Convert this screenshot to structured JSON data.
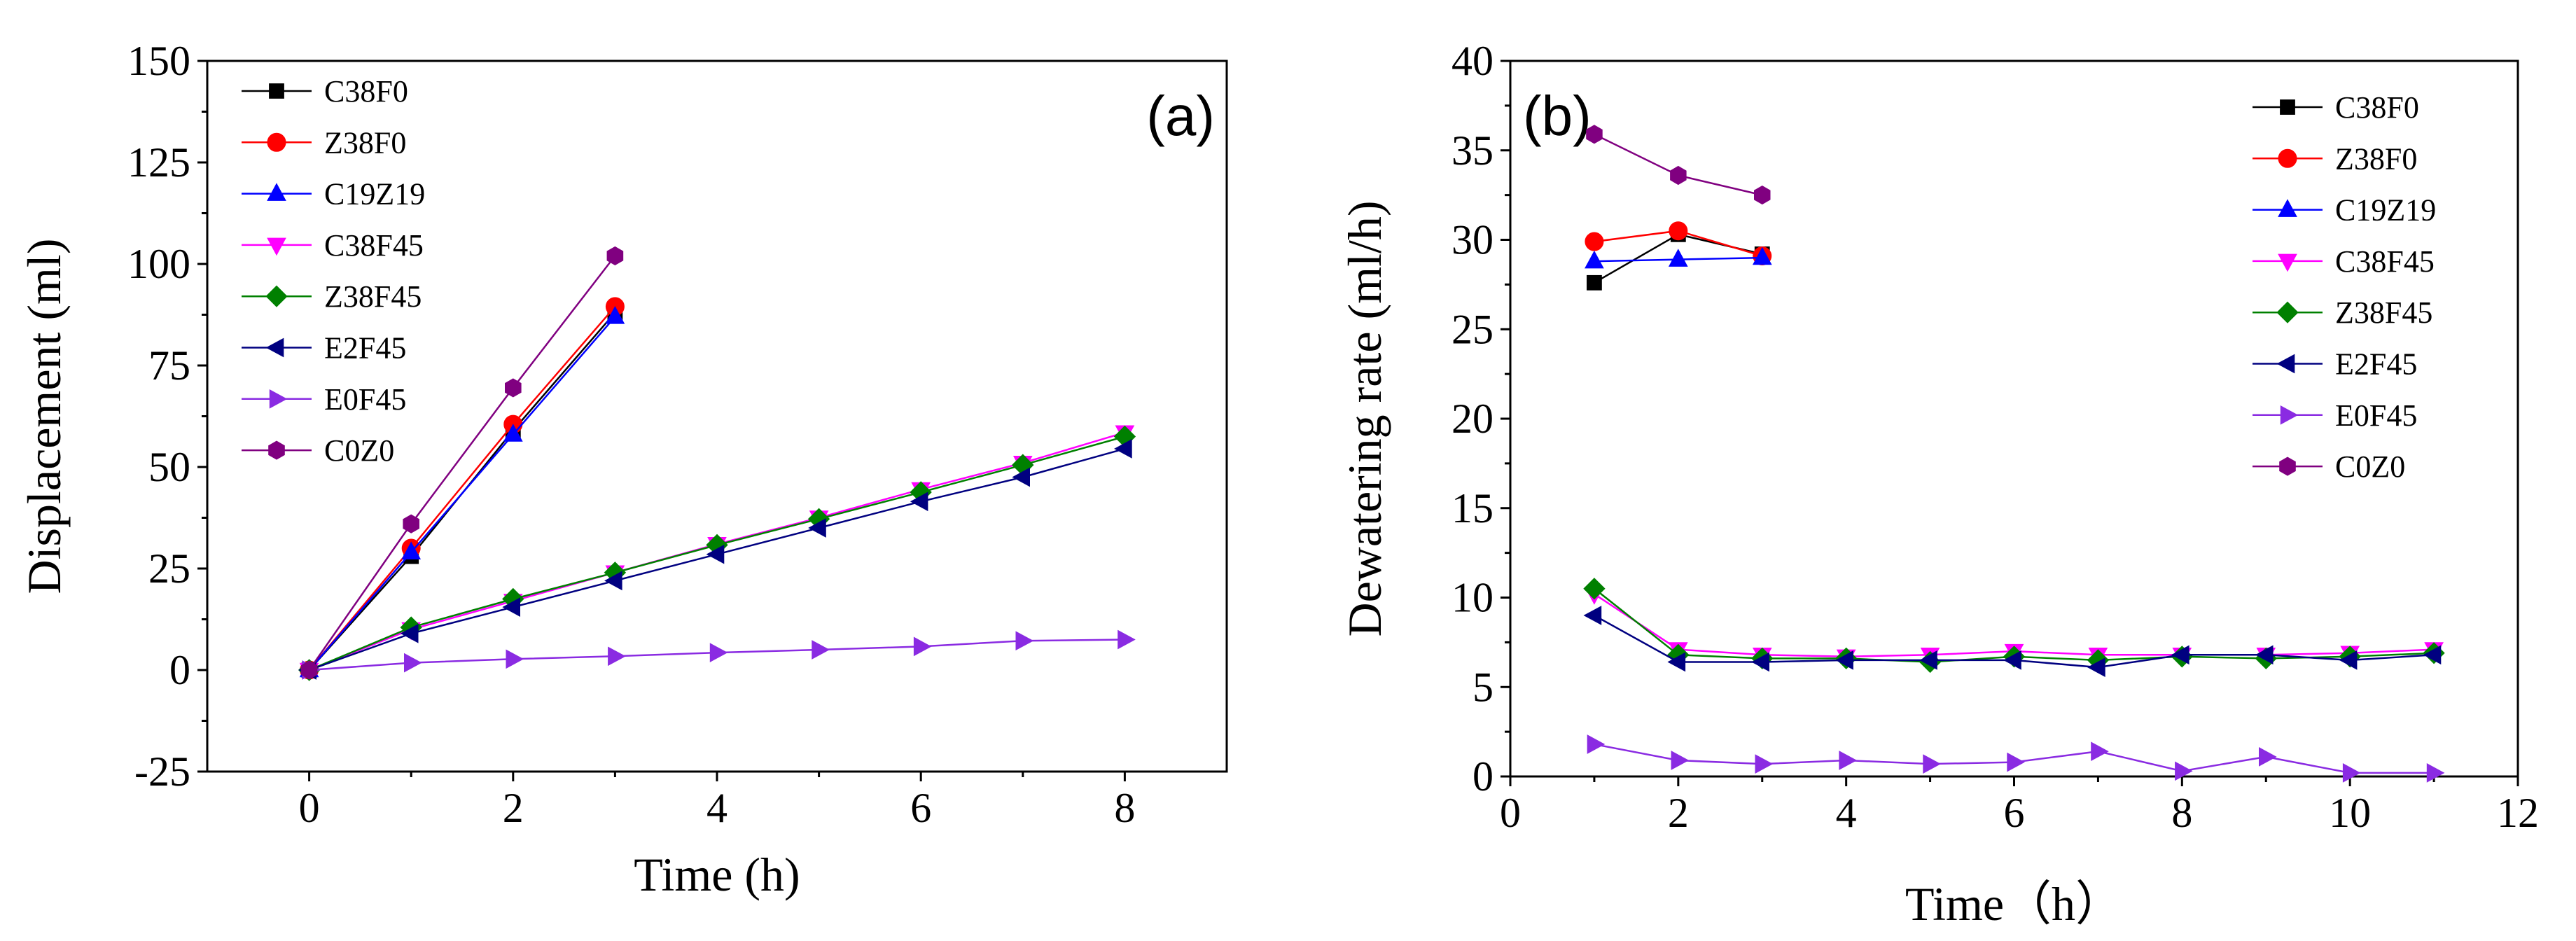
{
  "chart_data": [
    {
      "type": "line",
      "panel_label": "(a)",
      "xlabel": "Time (h)",
      "ylabel": "Displacement (ml)",
      "xlim": [
        -1,
        9
      ],
      "ylim": [
        -25,
        150
      ],
      "x_ticks": [
        0,
        2,
        4,
        6,
        8
      ],
      "y_ticks": [
        -25,
        0,
        25,
        50,
        75,
        100,
        125,
        150
      ],
      "legend_position": "top-left",
      "series": [
        {
          "name": "C38F0",
          "color": "#000000",
          "marker": "square",
          "x": [
            0,
            1,
            2,
            3
          ],
          "y": [
            0,
            28,
            59,
            88
          ]
        },
        {
          "name": "Z38F0",
          "color": "#ff0000",
          "marker": "circle",
          "x": [
            0,
            1,
            2,
            3
          ],
          "y": [
            0,
            30,
            60.5,
            89.5
          ]
        },
        {
          "name": "C19Z19",
          "color": "#0000ff",
          "marker": "triangle-up",
          "x": [
            0,
            1,
            2,
            3
          ],
          "y": [
            0,
            29,
            58,
            87
          ]
        },
        {
          "name": "C38F45",
          "color": "#ff00ff",
          "marker": "triangle-down",
          "x": [
            0,
            1,
            2,
            3,
            4,
            5,
            6,
            7,
            8
          ],
          "y": [
            0,
            10,
            17,
            24,
            31,
            37.5,
            44.5,
            51,
            58.5
          ]
        },
        {
          "name": "Z38F45",
          "color": "#008000",
          "marker": "diamond",
          "x": [
            0,
            1,
            2,
            3,
            4,
            5,
            6,
            7,
            8
          ],
          "y": [
            0,
            10.5,
            17.5,
            24,
            30.8,
            37.2,
            43.8,
            50.5,
            57.5
          ]
        },
        {
          "name": "E2F45",
          "color": "#000080",
          "marker": "triangle-left",
          "x": [
            0,
            1,
            2,
            3,
            4,
            5,
            6,
            7,
            8
          ],
          "y": [
            0,
            9,
            15.5,
            22,
            28.5,
            35,
            41.5,
            47.5,
            54.5
          ]
        },
        {
          "name": "E0F45",
          "color": "#8a2be2",
          "marker": "triangle-right",
          "x": [
            0,
            1,
            2,
            3,
            4,
            5,
            6,
            7,
            8
          ],
          "y": [
            0,
            1.8,
            2.7,
            3.4,
            4.3,
            5,
            5.8,
            7.2,
            7.5
          ]
        },
        {
          "name": "C0Z0",
          "color": "#800080",
          "marker": "hexagon",
          "x": [
            0,
            1,
            2,
            3
          ],
          "y": [
            0,
            36,
            69.5,
            102
          ]
        }
      ]
    },
    {
      "type": "line",
      "panel_label": "(b)",
      "xlabel": "Time（h）",
      "ylabel": "Dewatering rate (ml/h)",
      "xlim": [
        0,
        12
      ],
      "ylim": [
        0,
        40
      ],
      "x_ticks": [
        0,
        2,
        4,
        6,
        8,
        10,
        12
      ],
      "y_ticks": [
        0,
        5,
        10,
        15,
        20,
        25,
        30,
        35,
        40
      ],
      "legend_position": "top-right",
      "series": [
        {
          "name": "C38F0",
          "color": "#000000",
          "marker": "square",
          "x": [
            1,
            2,
            3
          ],
          "y": [
            27.6,
            30.3,
            29.2
          ]
        },
        {
          "name": "Z38F0",
          "color": "#ff0000",
          "marker": "circle",
          "x": [
            1,
            2,
            3
          ],
          "y": [
            29.9,
            30.5,
            29.1
          ]
        },
        {
          "name": "C19Z19",
          "color": "#0000ff",
          "marker": "triangle-up",
          "x": [
            1,
            2,
            3
          ],
          "y": [
            28.8,
            28.9,
            29
          ]
        },
        {
          "name": "C38F45",
          "color": "#ff00ff",
          "marker": "triangle-down",
          "x": [
            1,
            2,
            3,
            4,
            5,
            6,
            7,
            8,
            9,
            10,
            11
          ],
          "y": [
            10.2,
            7.1,
            6.8,
            6.7,
            6.8,
            7,
            6.8,
            6.8,
            6.8,
            6.9,
            7.1
          ]
        },
        {
          "name": "Z38F45",
          "color": "#008000",
          "marker": "diamond",
          "x": [
            1,
            2,
            3,
            4,
            5,
            6,
            7,
            8,
            9,
            10,
            11
          ],
          "y": [
            10.5,
            6.8,
            6.6,
            6.6,
            6.4,
            6.7,
            6.5,
            6.7,
            6.6,
            6.7,
            6.9
          ]
        },
        {
          "name": "E2F45",
          "color": "#000080",
          "marker": "triangle-left",
          "x": [
            1,
            2,
            3,
            4,
            5,
            6,
            7,
            8,
            9,
            10,
            11
          ],
          "y": [
            9,
            6.4,
            6.4,
            6.5,
            6.5,
            6.5,
            6.1,
            6.8,
            6.8,
            6.5,
            6.8
          ]
        },
        {
          "name": "E0F45",
          "color": "#8a2be2",
          "marker": "triangle-right",
          "x": [
            1,
            2,
            3,
            4,
            5,
            6,
            7,
            8,
            9,
            10,
            11
          ],
          "y": [
            1.8,
            0.9,
            0.7,
            0.9,
            0.7,
            0.8,
            1.4,
            0.3,
            1.1,
            0.2,
            0.2
          ]
        },
        {
          "name": "C0Z0",
          "color": "#800080",
          "marker": "hexagon",
          "x": [
            1,
            2,
            3
          ],
          "y": [
            35.9,
            33.6,
            32.5
          ]
        }
      ]
    }
  ]
}
